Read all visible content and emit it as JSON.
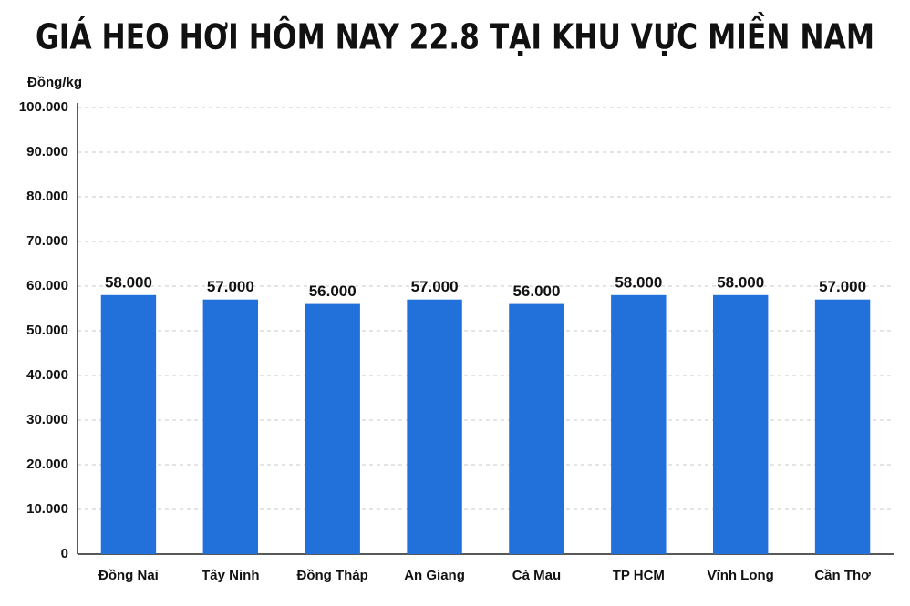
{
  "chart_data": {
    "type": "bar",
    "title": "GIÁ HEO HƠI HÔM NAY 22.8 TẠI KHU VỰC MIỀN NAM",
    "y_label": "Đồng/kg",
    "categories": [
      "Đồng Nai",
      "Tây Ninh",
      "Đồng Tháp",
      "An Giang",
      "Cà Mau",
      "TP HCM",
      "Vĩnh Long",
      "Cần Thơ"
    ],
    "values": [
      58000,
      57000,
      56000,
      57000,
      56000,
      58000,
      58000,
      57000
    ],
    "value_labels": [
      "58.000",
      "57.000",
      "56.000",
      "57.000",
      "56.000",
      "58.000",
      "58.000",
      "57.000"
    ],
    "color": "#2270d9",
    "ylim": [
      0,
      100000
    ],
    "yticks": [
      0,
      {
        "value": 10000,
        "label": "10.000"
      },
      {
        "value": 20000,
        "label": "20.000"
      },
      {
        "value": 30000,
        "label": "30.000"
      },
      {
        "value": 40000,
        "label": "40.000"
      },
      {
        "value": 50000,
        "label": "50.000"
      },
      {
        "value": 60000,
        "label": "60.000"
      },
      {
        "value": 70000,
        "label": "70.000"
      },
      {
        "value": 80000,
        "label": "80.000"
      },
      {
        "value": 90000,
        "label": "90.000"
      },
      {
        "value": 100000,
        "label": "100.000"
      }
    ],
    "grid": true
  }
}
